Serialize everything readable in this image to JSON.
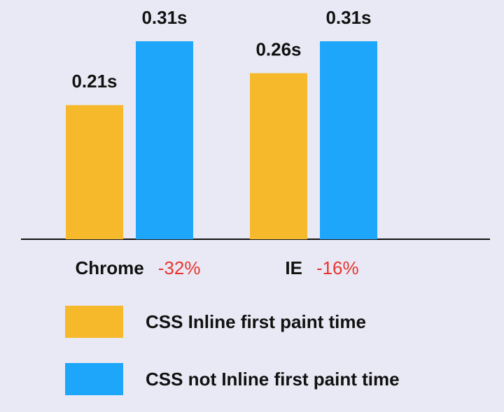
{
  "chart_data": {
    "type": "bar",
    "categories": [
      "Chrome",
      "IE"
    ],
    "category_notes": [
      "-32%",
      "-16%"
    ],
    "series": [
      {
        "name": "CSS Inline first paint time",
        "color": "#f6b92b",
        "values": [
          0.21,
          0.26
        ],
        "value_labels": [
          "0.21s",
          "0.26s"
        ]
      },
      {
        "name": "CSS not Inline first paint time",
        "color": "#1ea6fb",
        "values": [
          0.31,
          0.31
        ],
        "value_labels": [
          "0.31s",
          "0.31s"
        ]
      }
    ],
    "note_color": "#e8352d"
  }
}
